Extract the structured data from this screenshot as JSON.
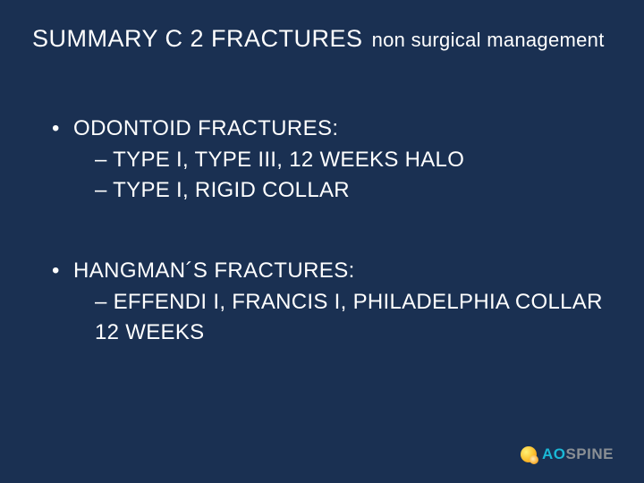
{
  "background_color": "#1a3052",
  "text_color": "#ffffff",
  "title": {
    "main": "SUMMARY C 2 FRACTURES",
    "sub": "non surgical management",
    "main_fontsize": 27,
    "sub_fontsize": 22
  },
  "sections": [
    {
      "heading": "ODONTOID FRACTURES:",
      "items": [
        "– TYPE I, TYPE III, 12 WEEKS HALO",
        "– TYPE I, RIGID COLLAR"
      ]
    },
    {
      "heading": "HANGMAN´S FRACTURES:",
      "items": [
        "– EFFENDI I, FRANCIS I, PHILADELPHIA COLLAR 12 WEEKS"
      ]
    }
  ],
  "bullet_glyph": "•",
  "body_fontsize": 24,
  "logo": {
    "prefix": "AO",
    "suffix": "SPINE",
    "prefix_color": "#1ab8d6",
    "suffix_color": "#8a8f94",
    "icon_colors": [
      "#fff176",
      "#fbc02d",
      "#f57f17"
    ]
  }
}
